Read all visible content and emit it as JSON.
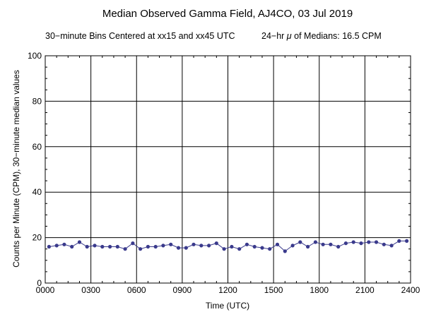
{
  "chart_data": {
    "type": "line",
    "title": "Median Observed Gamma Field, AJ4CO, 03 Jul 2019",
    "subtitle_left": "30−minute Bins Centered at xx15 and xx45 UTC",
    "subtitle_right_prefix": "24−hr ",
    "subtitle_right_mu": "μ",
    "subtitle_right_suffix": " of Medians: 16.5 CPM",
    "xlabel": "Time (UTC)",
    "ylabel": "Counts per Minute (CPM), 30−minute median values",
    "xlim": [
      0,
      24
    ],
    "ylim": [
      0,
      100
    ],
    "x_ticks": [
      "0000",
      "0300",
      "0600",
      "0900",
      "1200",
      "1500",
      "1800",
      "2100",
      "2400"
    ],
    "y_ticks": [
      "0",
      "20",
      "40",
      "60",
      "80",
      "100"
    ],
    "grid": true,
    "line_color": "#3a3a8c",
    "point_color": "#3a3a8c",
    "x": [
      0.25,
      0.75,
      1.25,
      1.75,
      2.25,
      2.75,
      3.25,
      3.75,
      4.25,
      4.75,
      5.25,
      5.75,
      6.25,
      6.75,
      7.25,
      7.75,
      8.25,
      8.75,
      9.25,
      9.75,
      10.25,
      10.75,
      11.25,
      11.75,
      12.25,
      12.75,
      13.25,
      13.75,
      14.25,
      14.75,
      15.25,
      15.75,
      16.25,
      16.75,
      17.25,
      17.75,
      18.25,
      18.75,
      19.25,
      19.75,
      20.25,
      20.75,
      21.25,
      21.75,
      22.25,
      22.75,
      23.25,
      23.75
    ],
    "values": [
      16,
      16.5,
      17,
      16,
      18,
      16,
      16.5,
      16,
      16,
      16,
      15,
      17.5,
      15,
      16,
      16,
      16.5,
      17,
      15.5,
      15.5,
      17,
      16.5,
      16.5,
      17.5,
      15,
      16,
      15,
      17,
      16,
      15.5,
      15,
      17,
      14,
      16.5,
      18,
      16,
      18,
      17,
      17,
      16,
      17.5,
      18,
      17.5,
      18,
      18,
      17,
      16.5,
      18.5,
      18.5
    ]
  }
}
